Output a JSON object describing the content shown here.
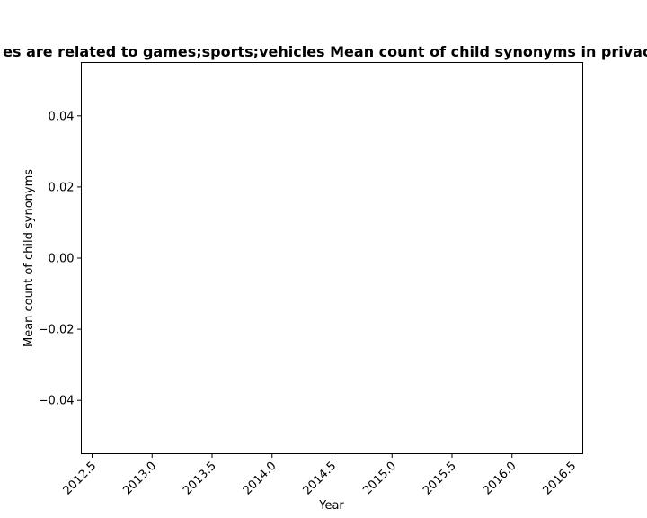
{
  "chart_data": {
    "type": "line",
    "title": "es are related to games;sports;vehicles Mean count of child synonyms in privacy",
    "xlabel": "Year",
    "ylabel": "Mean count of child synonyms",
    "xlim": [
      2012.41,
      2016.59
    ],
    "ylim": [
      -0.055,
      0.055
    ],
    "xticks": [
      2012.5,
      2013.0,
      2013.5,
      2014.0,
      2014.5,
      2015.0,
      2015.5,
      2016.0,
      2016.5
    ],
    "xtick_labels": [
      "2012.5",
      "2013.0",
      "2013.5",
      "2014.0",
      "2014.5",
      "2015.0",
      "2015.5",
      "2016.0",
      "2016.5"
    ],
    "yticks": [
      -0.04,
      -0.02,
      0.0,
      0.02,
      0.04
    ],
    "ytick_labels": [
      "−0.04",
      "−0.02",
      "0.00",
      "0.02",
      "0.04"
    ],
    "series": [],
    "grid": false,
    "legend": "none"
  }
}
